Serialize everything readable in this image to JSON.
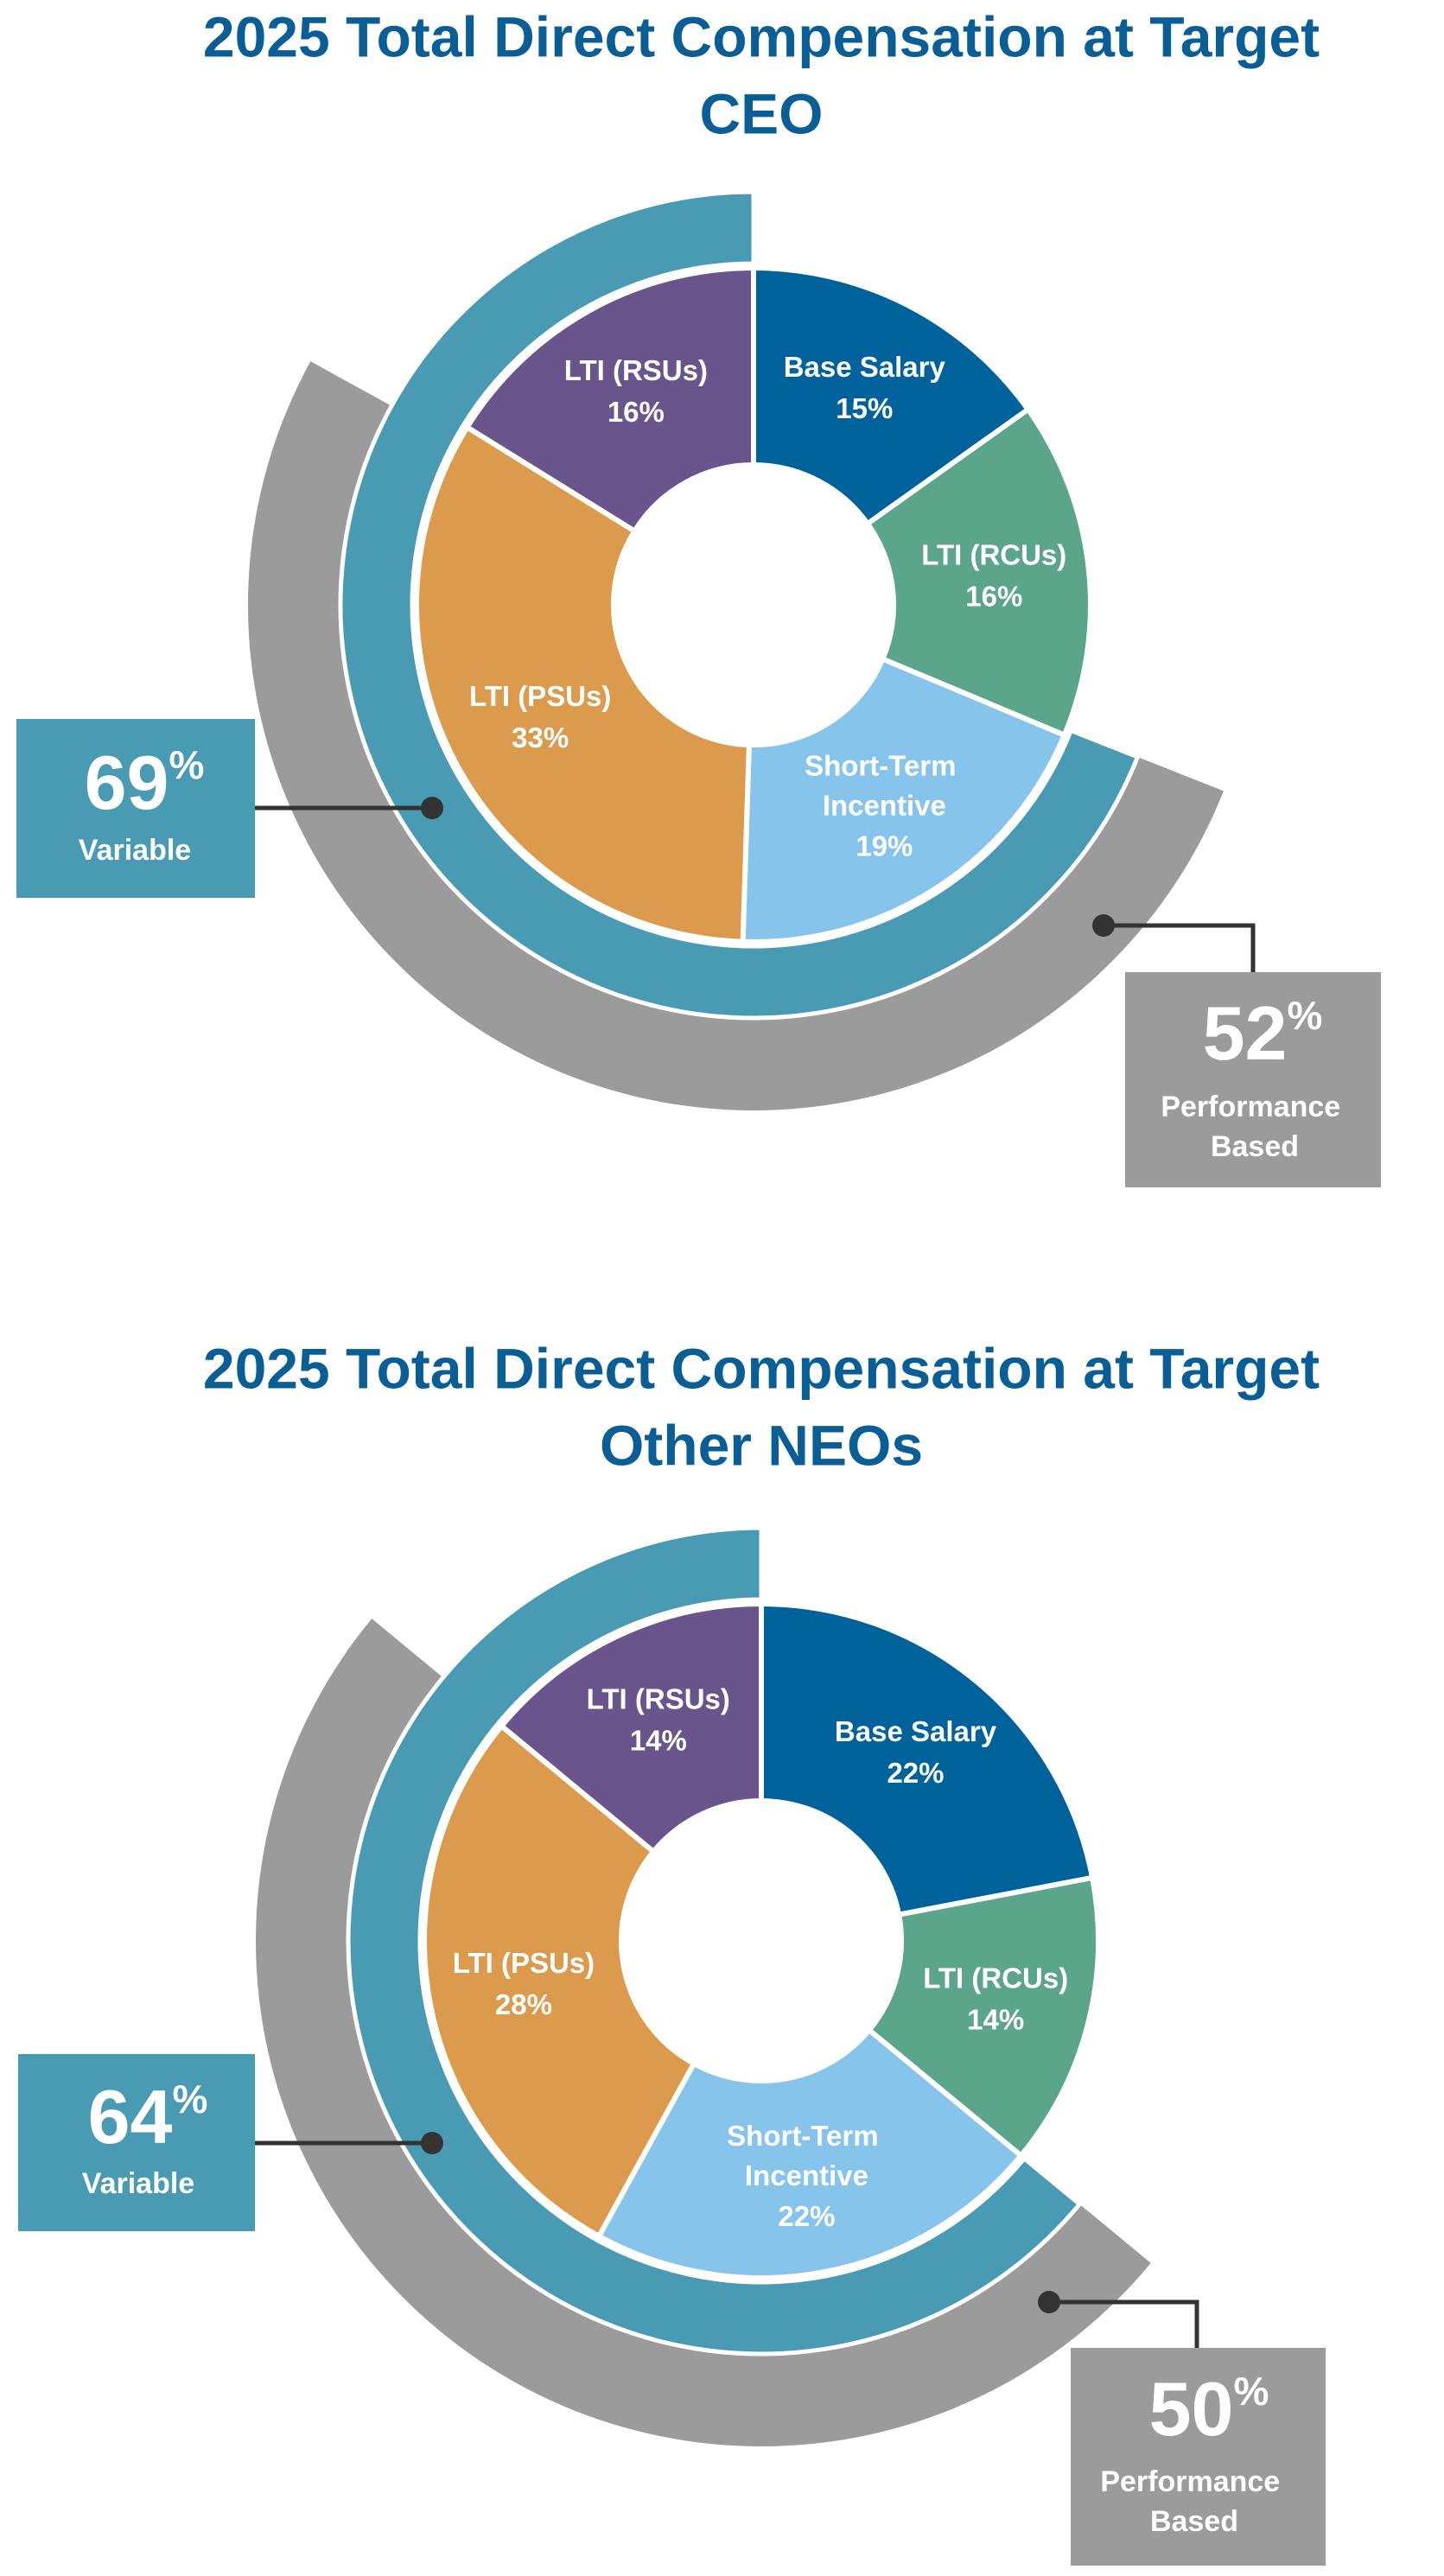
{
  "chart_data": [
    {
      "type": "donut",
      "title": "2025 Total Direct Compensation at Target",
      "subtitle": "CEO",
      "categories": [
        "Base Salary",
        "LTI (RCUs)",
        "Short-Term Incentive",
        "LTI (PSUs)",
        "LTI (RSUs)"
      ],
      "values": [
        15,
        16,
        19,
        33,
        16
      ],
      "value_labels": [
        "15%",
        "16%",
        "19%",
        "33%",
        "16%"
      ],
      "colors": [
        "#00629b",
        "#5ba58a",
        "#86c4eb",
        "#dc9a4d",
        "#6a548c"
      ],
      "rings": [
        {
          "name": "Variable",
          "value": 69,
          "value_label": "69%",
          "color": "#489bb3"
        },
        {
          "name": "Performance Based",
          "value": 52,
          "value_label": "52%",
          "color": "#9b9b9b"
        }
      ]
    },
    {
      "type": "donut",
      "title": "2025 Total Direct Compensation at Target",
      "subtitle": "Other NEOs",
      "categories": [
        "Base Salary",
        "LTI (RCUs)",
        "Short-Term Incentive",
        "LTI (PSUs)",
        "LTI (RSUs)"
      ],
      "values": [
        22,
        14,
        22,
        28,
        14
      ],
      "value_labels": [
        "22%",
        "14%",
        "22%",
        "28%",
        "14%"
      ],
      "colors": [
        "#00629b",
        "#5ba58a",
        "#86c4eb",
        "#dc9a4d",
        "#6a548c"
      ],
      "rings": [
        {
          "name": "Variable",
          "value": 64,
          "value_label": "64%",
          "color": "#489bb3"
        },
        {
          "name": "Performance Based",
          "value": 50,
          "value_label": "50%",
          "color": "#9b9b9b"
        }
      ]
    }
  ]
}
